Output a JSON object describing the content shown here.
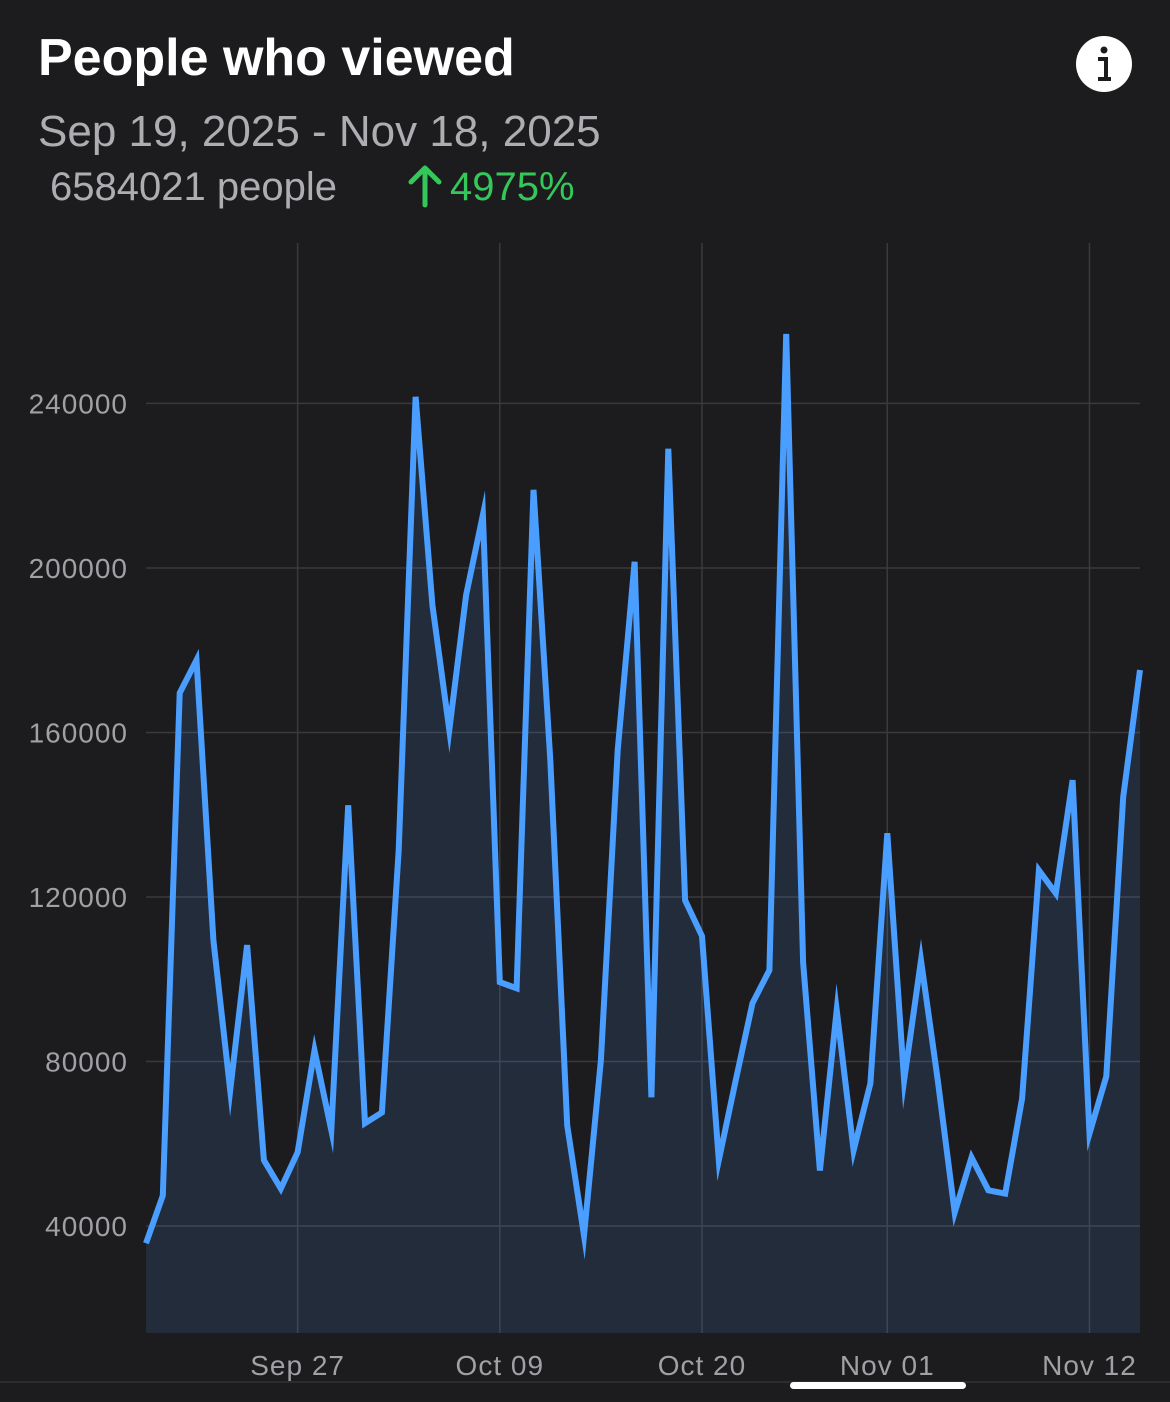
{
  "chart_data": {
    "type": "area",
    "title": "People who viewed",
    "subtitle": "Sep 19, 2025 - Nov 18, 2025",
    "total": "6584021 people",
    "change": "4975%",
    "categories": [
      null,
      null,
      null,
      null,
      null,
      null,
      null,
      null,
      null,
      "Sep 27",
      null,
      null,
      null,
      null,
      null,
      null,
      null,
      null,
      null,
      null,
      null,
      "Oct 09",
      null,
      null,
      null,
      null,
      null,
      null,
      null,
      null,
      null,
      null,
      null,
      "Oct 20",
      null,
      null,
      null,
      null,
      null,
      null,
      null,
      null,
      null,
      null,
      "Nov 01",
      null,
      null,
      null,
      null,
      null,
      null,
      null,
      null,
      null,
      null,
      null,
      "Nov 12",
      null,
      null,
      null
    ],
    "series": [
      {
        "color": "#4a9eff",
        "values": [
          35800,
          47400,
          169600,
          177600,
          109500,
          73000,
          108300,
          56000,
          49100,
          57900,
          82700,
          63300,
          142300,
          65000,
          67600,
          131400,
          241600,
          191000,
          160600,
          193400,
          212900,
          99300,
          97800,
          219000,
          153300,
          64500,
          37700,
          80300,
          155700,
          201500,
          71300,
          229000,
          119200,
          110500,
          56000,
          75400,
          94200,
          102200,
          256900,
          104100,
          53500,
          92500,
          58400,
          74700,
          135500,
          75400,
          104600,
          75400,
          43300,
          56700,
          48700,
          47900,
          71000,
          126500,
          120900,
          148400,
          62500,
          76400,
          144300,
          175200
        ]
      }
    ],
    "ylim": [
      14000,
      279000
    ],
    "yticks": [
      40000,
      80000,
      120000,
      160000,
      200000,
      240000
    ],
    "grid": true
  }
}
